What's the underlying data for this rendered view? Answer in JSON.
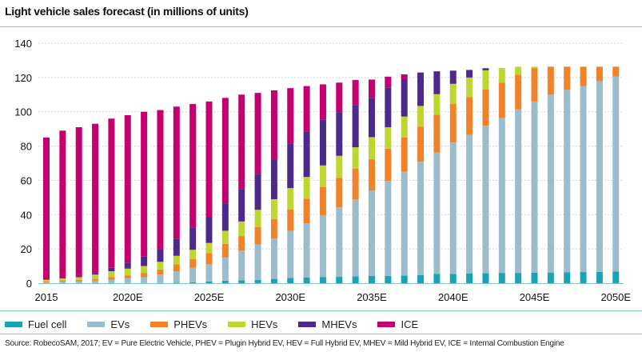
{
  "title": "Light vehicle sales forecast (in millions of units)",
  "source": "Source: RobecoSAM, 2017; EV = Pure Electric Vehicle, PHEV = Plugin Hybrid EV,  HEV = Full Hybrid EV, MHEV = Mild Hybrid EV, ICE = Internal Combustion Engine",
  "chart_data": {
    "type": "bar",
    "stacked": true,
    "title": "Light vehicle sales forecast (in millions of units)",
    "xlabel": "",
    "ylabel": "",
    "ylim": [
      0,
      140
    ],
    "yticks": [
      0,
      20,
      40,
      60,
      80,
      100,
      120,
      140
    ],
    "grid": "horizontal dotted",
    "legend": "bottom",
    "categories": [
      "2015",
      "2016",
      "2017",
      "2018",
      "2019",
      "2020E",
      "2021E",
      "2022E",
      "2023E",
      "2024E",
      "2025E",
      "2026E",
      "2027E",
      "2028E",
      "2029E",
      "2030E",
      "2031E",
      "2032E",
      "2033E",
      "2034E",
      "2035E",
      "2036E",
      "2037E",
      "2038E",
      "2039E",
      "2040E",
      "2041E",
      "2042E",
      "2043E",
      "2044E",
      "2045E",
      "2046E",
      "2047E",
      "2048E",
      "2049E",
      "2050E"
    ],
    "xtick_labels": [
      "2015",
      "2020E",
      "2025E",
      "2030E",
      "2035E",
      "2040E",
      "2045E",
      "2050E"
    ],
    "series": [
      {
        "name": "Fuel cell",
        "color": "#1aa3b5",
        "values": [
          0,
          0,
          0,
          0,
          0,
          0,
          0,
          0,
          0.3,
          0.5,
          1,
          1.5,
          1.7,
          2,
          2.5,
          3,
          3.3,
          3.5,
          3.7,
          4,
          4.2,
          4.3,
          4.5,
          4.7,
          5.4,
          5.5,
          5.6,
          5.8,
          6,
          6,
          6.2,
          6.2,
          6.3,
          6.5,
          6.6,
          6.8
        ]
      },
      {
        "name": "EVs",
        "color": "#9bbccc",
        "values": [
          0.5,
          0.8,
          1,
          1.5,
          2,
          3,
          3.5,
          5,
          6.7,
          8.5,
          10,
          13.5,
          17.3,
          20.5,
          23.5,
          27.6,
          31.7,
          36.2,
          40.6,
          45,
          49.8,
          55.3,
          60.5,
          66.1,
          70.8,
          76.5,
          81,
          86,
          90.4,
          95.4,
          99.8,
          103.8,
          106.5,
          108.5,
          111.3,
          113.7
        ]
      },
      {
        "name": "PHEVs",
        "color": "#f0832a",
        "values": [
          0.5,
          0.8,
          1,
          1,
          1.5,
          1.5,
          2.5,
          3,
          4,
          5,
          6.5,
          8,
          8.5,
          10.2,
          11.3,
          12.4,
          14.3,
          16.3,
          17.1,
          17.9,
          18.3,
          18.9,
          20,
          20.6,
          22,
          22.5,
          22,
          21.2,
          20.6,
          20.2,
          19.5,
          16.3,
          13.5,
          11.3,
          8.4,
          5.8
        ]
      },
      {
        "name": "HEVs",
        "color": "#bfd630",
        "values": [
          1,
          1.2,
          1.5,
          2.5,
          3.5,
          4,
          4,
          4.5,
          5,
          5.5,
          6,
          7.6,
          8.5,
          10.1,
          11.7,
          12.5,
          12.7,
          12.7,
          12.9,
          12.4,
          12.9,
          12.5,
          12.2,
          12,
          12.1,
          11.8,
          11.4,
          11.2,
          8.5,
          4.7,
          0.8,
          0,
          0,
          0,
          0,
          0
        ]
      },
      {
        "name": "MHEVs",
        "color": "#4b2a8c",
        "values": [
          0,
          0.2,
          0.5,
          1,
          2,
          3.5,
          5.5,
          7.5,
          10,
          13,
          15,
          16,
          19,
          20.7,
          23.3,
          26.1,
          26.5,
          26.9,
          25.5,
          24.7,
          22.9,
          23,
          21.8,
          19.5,
          13.3,
          7.7,
          4.4,
          1.2,
          0,
          0,
          0,
          0,
          0,
          0,
          0,
          0
        ]
      },
      {
        "name": "ICE",
        "color": "#c4006e",
        "values": [
          83,
          86,
          87,
          87,
          87,
          86,
          84.5,
          81,
          77,
          72,
          67.5,
          61.5,
          55,
          47.5,
          40.2,
          32.2,
          26.5,
          20.4,
          17.2,
          14.5,
          10.7,
          6.5,
          2.8,
          0,
          0,
          0,
          0,
          0,
          0,
          0,
          0,
          0,
          0,
          0,
          0,
          0
        ]
      }
    ]
  }
}
